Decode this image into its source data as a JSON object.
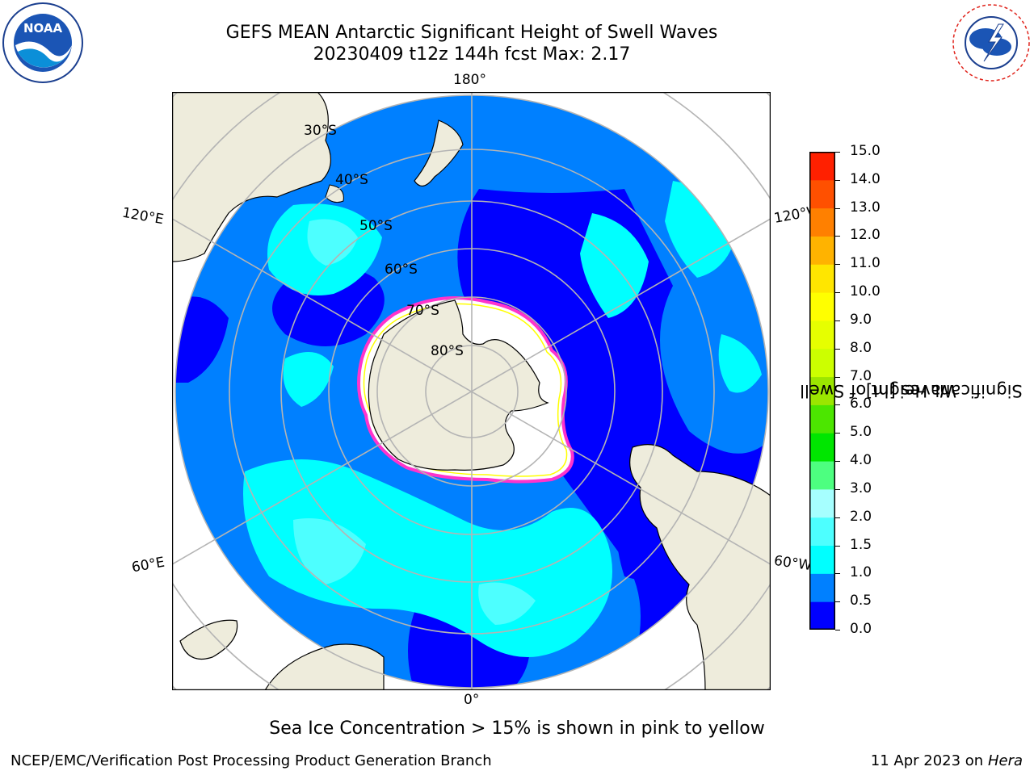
{
  "title": {
    "line1": "GEFS MEAN Antarctic Significant Height of Swell Waves",
    "line2": "20230409 t12z 144h fcst   Max: 2.17"
  },
  "logos": {
    "left": {
      "icon": "noaa-logo",
      "text": "NOAA"
    },
    "right": {
      "icon": "national-weather-service-logo"
    }
  },
  "map": {
    "projection": "south-polar-stereographic",
    "longitude_labels": {
      "top": "180°",
      "bottom": "0°",
      "upper_left": "120°E",
      "upper_right": "120°W",
      "lower_left": "60°E",
      "lower_right": "60°W"
    },
    "latitude_labels": [
      "30°S",
      "40°S",
      "50°S",
      "60°S",
      "70°S",
      "80°S"
    ],
    "colors": {
      "land": "#eeecdc",
      "ice_free": "#ffffff",
      "gridline": "#b4b4b4",
      "sea_ice_edge": [
        "#ff33cc",
        "#ffff00"
      ]
    }
  },
  "colorbar": {
    "label": "Significant Height of Swell Waves [m]",
    "label_line1": "Significant Height of Swell",
    "label_line2": "Waves [m]",
    "ticks": [
      "0.0",
      "0.5",
      "1.0",
      "1.5",
      "2.0",
      "3.0",
      "4.0",
      "5.0",
      "6.0",
      "7.0",
      "8.0",
      "9.0",
      "10.0",
      "11.0",
      "12.0",
      "13.0",
      "14.0",
      "15.0"
    ],
    "colors": [
      "#0000ff",
      "#0080ff",
      "#00ffff",
      "#4dffff",
      "#a6ffff",
      "#4dff80",
      "#00e600",
      "#4ce600",
      "#9be600",
      "#ccff00",
      "#e6ff00",
      "#ffff00",
      "#ffe600",
      "#ffb300",
      "#ff8000",
      "#ff5000",
      "#ff2000"
    ]
  },
  "note": "Sea Ice Concentration > 15% is shown in pink to yellow",
  "footer": {
    "credit": "NCEP/EMC/Verification Post Processing Product Generation Branch",
    "date_prefix": "11 Apr 2023 on ",
    "machine": "Hera"
  }
}
